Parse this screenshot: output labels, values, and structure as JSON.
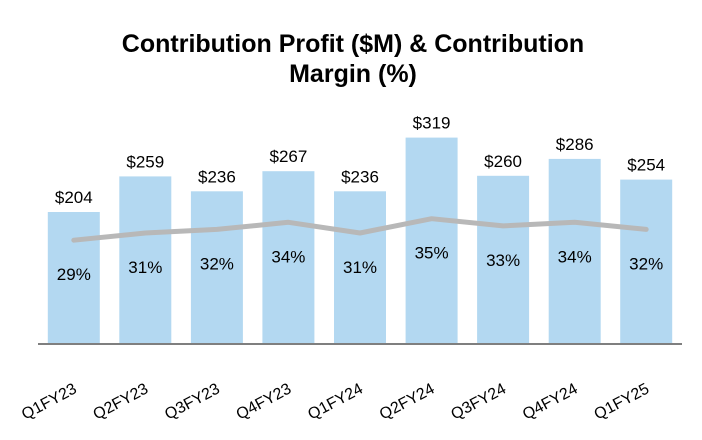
{
  "chart_data": {
    "type": "bar",
    "title_lines": [
      "Contribution Profit ($M) & Contribution",
      "Margin (%)"
    ],
    "categories": [
      "Q1FY23",
      "Q2FY23",
      "Q3FY23",
      "Q4FY23",
      "Q1FY24",
      "Q2FY24",
      "Q3FY24",
      "Q4FY24",
      "Q1FY25"
    ],
    "series": [
      {
        "type": "bar",
        "values": [
          204,
          259,
          236,
          267,
          236,
          319,
          260,
          286,
          254
        ],
        "labels": [
          "$204",
          "$259",
          "$236",
          "$267",
          "$236",
          "$319",
          "$260",
          "$286",
          "$254"
        ],
        "color": "#b3d8f1"
      },
      {
        "type": "line",
        "values": [
          29,
          31,
          32,
          34,
          31,
          35,
          33,
          34,
          32
        ],
        "labels": [
          "29%",
          "31%",
          "32%",
          "34%",
          "31%",
          "35%",
          "33%",
          "34%",
          "32%"
        ],
        "color": "#b8b8b8"
      }
    ],
    "ylim": [
      0,
      340
    ],
    "ylim_secondary": [
      0,
      50
    ],
    "axis_color": "#7f7f7f",
    "grid": false,
    "legend": "none"
  }
}
